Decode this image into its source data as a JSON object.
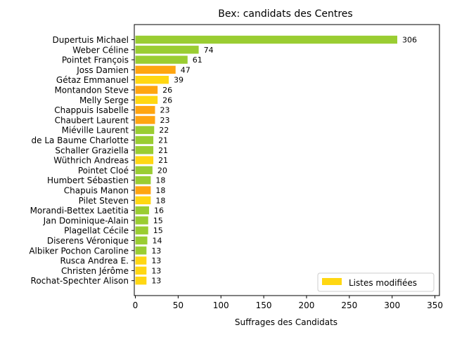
{
  "chart_data": {
    "type": "bar",
    "orientation": "horizontal",
    "title": "Bex: candidats des Centres",
    "xlabel": "Suffrages des Candidats",
    "ylabel": "",
    "xlim": [
      0,
      350
    ],
    "xticks": [
      "0",
      "50",
      "100",
      "150",
      "200",
      "250",
      "300",
      "350"
    ],
    "grid": false,
    "legend": {
      "placement": "lower-right",
      "entries": [
        {
          "label": "Listes modifiées",
          "color": "#ffd712"
        }
      ]
    },
    "colors": {
      "green": "#9acd32",
      "orange": "#ffa510",
      "yellow": "#ffd712"
    },
    "categories": [
      "Dupertuis Michael",
      "Weber Céline",
      "Pointet François",
      "Joss Damien",
      "Gétaz Emmanuel",
      "Montandon Steve",
      "Melly Serge",
      "Chappuis Isabelle",
      "Chaubert Laurent",
      "Miéville Laurent",
      "de La Baume Charlotte",
      "Schaller Graziella",
      "Wüthrich Andreas",
      "Pointet Cloé",
      "Humbert Sébastien",
      "Chapuis Manon",
      "Pilet Steven",
      "Morandi-Bettex Laetitia",
      "Jan Dominique-Alain",
      "Plagellat Cécile",
      "Diserens Véronique",
      "Albiker Pochon Caroline",
      "Rusca Andrea E.",
      "Christen Jérôme",
      "Rochat-Spechter Alison"
    ],
    "values": [
      306,
      74,
      61,
      47,
      39,
      26,
      26,
      23,
      23,
      22,
      21,
      21,
      21,
      20,
      18,
      18,
      18,
      16,
      15,
      15,
      14,
      13,
      13,
      13,
      13
    ],
    "value_labels": [
      "306",
      "74",
      "61",
      "47",
      "39",
      "26",
      "26",
      "23",
      "23",
      "22",
      "21",
      "21",
      "21",
      "20",
      "18",
      "18",
      "18",
      "16",
      "15",
      "15",
      "14",
      "13",
      "13",
      "13",
      "13"
    ],
    "bar_colors": [
      "#9acd32",
      "#9acd32",
      "#9acd32",
      "#ffa510",
      "#ffd712",
      "#ffa510",
      "#ffd712",
      "#ffa510",
      "#ffa510",
      "#9acd32",
      "#9acd32",
      "#9acd32",
      "#ffd712",
      "#9acd32",
      "#9acd32",
      "#ffa510",
      "#ffd712",
      "#9acd32",
      "#9acd32",
      "#9acd32",
      "#9acd32",
      "#9acd32",
      "#ffd712",
      "#ffd712",
      "#ffd712"
    ]
  }
}
